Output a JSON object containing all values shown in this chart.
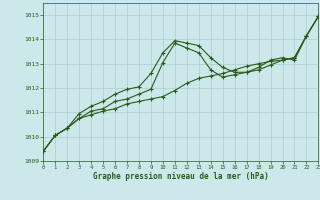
{
  "title": "Graphe pression niveau de la mer (hPa)",
  "background_color": "#cce8ea",
  "grid_color": "#b0cccc",
  "line_color": "#2d5a1b",
  "xlim": [
    0,
    23
  ],
  "ylim": [
    1009,
    1015.5
  ],
  "yticks": [
    1009,
    1010,
    1011,
    1012,
    1013,
    1014,
    1015
  ],
  "xticks": [
    0,
    1,
    2,
    3,
    4,
    5,
    6,
    7,
    8,
    9,
    10,
    11,
    12,
    13,
    14,
    15,
    16,
    17,
    18,
    19,
    20,
    21,
    22,
    23
  ],
  "series": [
    {
      "x": [
        0,
        1,
        2,
        3,
        4,
        5,
        6,
        7,
        8,
        9,
        10,
        11,
        12,
        13,
        14,
        15,
        16,
        17,
        18,
        19,
        20,
        21,
        22,
        23
      ],
      "y": [
        1009.4,
        1010.05,
        1010.35,
        1010.75,
        1010.9,
        1011.05,
        1011.15,
        1011.35,
        1011.45,
        1011.55,
        1011.65,
        1011.9,
        1012.2,
        1012.4,
        1012.5,
        1012.6,
        1012.75,
        1012.9,
        1013.0,
        1013.1,
        1013.15,
        1013.25,
        1014.15,
        1014.95
      ]
    },
    {
      "x": [
        0,
        1,
        2,
        3,
        4,
        5,
        6,
        7,
        8,
        9,
        10,
        11,
        12,
        13,
        14,
        15,
        16,
        17,
        18,
        19,
        20,
        21,
        22,
        23
      ],
      "y": [
        1009.4,
        1010.05,
        1010.35,
        1010.95,
        1011.25,
        1011.45,
        1011.75,
        1011.95,
        1012.05,
        1012.6,
        1013.45,
        1013.95,
        1013.85,
        1013.75,
        1013.25,
        1012.85,
        1012.65,
        1012.65,
        1012.75,
        1012.95,
        1013.15,
        1013.25,
        1014.15,
        1014.95
      ]
    },
    {
      "x": [
        0,
        1,
        2,
        3,
        4,
        5,
        6,
        7,
        8,
        9,
        10,
        11,
        12,
        13,
        14,
        15,
        16,
        17,
        18,
        19,
        20,
        21,
        22,
        23
      ],
      "y": [
        1009.4,
        1010.05,
        1010.35,
        1010.75,
        1011.05,
        1011.15,
        1011.45,
        1011.55,
        1011.75,
        1011.95,
        1013.05,
        1013.85,
        1013.65,
        1013.45,
        1012.75,
        1012.45,
        1012.55,
        1012.65,
        1012.85,
        1013.15,
        1013.25,
        1013.15,
        1014.15,
        1014.95
      ]
    }
  ]
}
